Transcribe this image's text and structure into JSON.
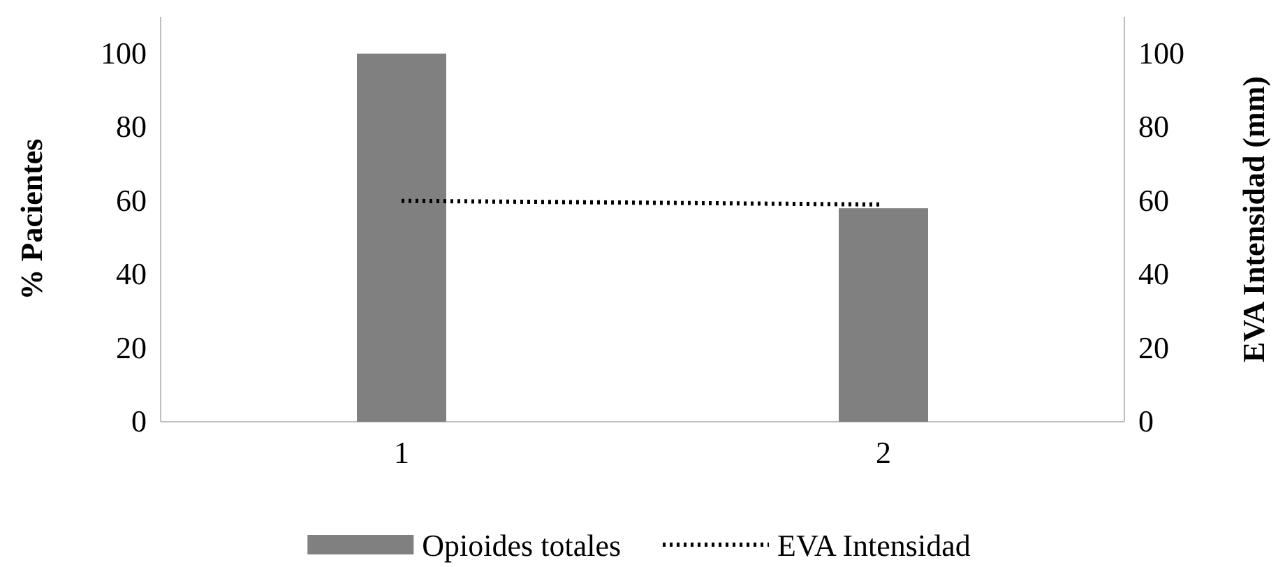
{
  "chart_data": {
    "type": "bar",
    "categories": [
      "1",
      "2"
    ],
    "ylabel": "% Pacientes",
    "y2label": "EVA Intensidad (mm)",
    "ylim": [
      0,
      110
    ],
    "yticks": [
      0,
      20,
      40,
      60,
      80,
      100
    ],
    "y2lim": [
      0,
      110
    ],
    "y2ticks": [
      0,
      20,
      40,
      60,
      80,
      100
    ],
    "series": [
      {
        "name": "Opioides totales",
        "color": "#808080",
        "values": [
          100,
          58
        ]
      },
      {
        "name": "EVA Intensidad",
        "type": "line",
        "line_style": "dotted",
        "color": "#000000",
        "values": [
          60,
          59
        ]
      }
    ],
    "legend": "bottom",
    "grid": false
  }
}
